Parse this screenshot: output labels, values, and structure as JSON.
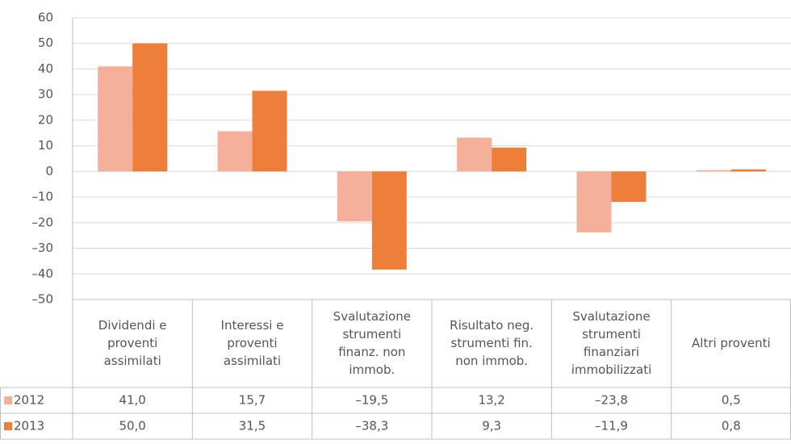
{
  "chart_data": {
    "type": "bar",
    "categories": [
      "Dividendi e\nproventi\nassimilati",
      "Interessi e\nproventi\nassimilati",
      "Svalutazione\nstrumenti\nfinanz. non\nimmob.",
      "Risultato neg.\nstrumenti fin.\nnon immob.",
      "Svalutazione\nstrumenti\nfinanziari\nimmobilizzati",
      "Altri proventi"
    ],
    "series": [
      {
        "name": "2012",
        "color": "#f4b09a",
        "values": [
          41.0,
          15.7,
          -19.5,
          13.2,
          -23.8,
          0.5
        ],
        "value_labels": [
          "41,0",
          "15,7",
          "–19,5",
          "13,2",
          "–23,8",
          "0,5"
        ]
      },
      {
        "name": "2013",
        "color": "#ee7f3b",
        "values": [
          50.0,
          31.5,
          -38.3,
          9.3,
          -11.9,
          0.8
        ],
        "value_labels": [
          "50,0",
          "31,5",
          "–38,3",
          "9,3",
          "–11,9",
          "0,8"
        ]
      }
    ],
    "ylim": [
      -50,
      60
    ],
    "yticks": [
      {
        "value": -50,
        "label": "–50"
      },
      {
        "value": -40,
        "label": "–40"
      },
      {
        "value": -30,
        "label": "–30"
      },
      {
        "value": -20,
        "label": "–20"
      },
      {
        "value": -10,
        "label": "–10"
      },
      0,
      10,
      20,
      30,
      40,
      50,
      60
    ],
    "grid": true
  }
}
